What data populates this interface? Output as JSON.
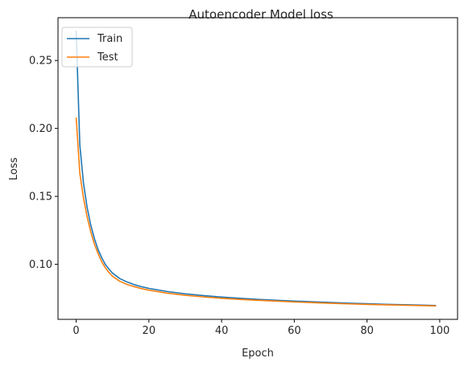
{
  "chart_data": {
    "type": "line",
    "title": "Autoencoder Model loss",
    "xlabel": "Epoch",
    "ylabel": "Loss",
    "xlim": [
      -5,
      104.9
    ],
    "ylim": [
      0.0595,
      0.2815
    ],
    "xticks": [
      0,
      20,
      40,
      60,
      80,
      100
    ],
    "yticks": [
      0.1,
      0.15,
      0.2,
      0.25
    ],
    "xtick_labels": [
      "0",
      "20",
      "40",
      "60",
      "80",
      "100"
    ],
    "ytick_labels": [
      "0.10",
      "0.15",
      "0.20",
      "0.25"
    ],
    "grid": false,
    "legend_position": "upper-left",
    "series": [
      {
        "name": "Train",
        "color": "#1f77b4",
        "x": [
          0,
          1,
          2,
          3,
          4,
          5,
          6,
          7,
          8,
          9,
          10,
          12,
          14,
          16,
          18,
          20,
          25,
          30,
          35,
          40,
          45,
          50,
          55,
          60,
          65,
          70,
          75,
          80,
          85,
          90,
          95,
          99
        ],
        "y": [
          0.272,
          0.188,
          0.16,
          0.142,
          0.129,
          0.119,
          0.111,
          0.105,
          0.1,
          0.0965,
          0.0935,
          0.0895,
          0.087,
          0.085,
          0.0835,
          0.0823,
          0.08,
          0.0783,
          0.077,
          0.0759,
          0.075,
          0.0742,
          0.0735,
          0.0729,
          0.0724,
          0.0719,
          0.0714,
          0.071,
          0.0706,
          0.0703,
          0.07,
          0.0697
        ]
      },
      {
        "name": "Test",
        "color": "#ff7f0e",
        "x": [
          0,
          1,
          2,
          3,
          4,
          5,
          6,
          7,
          8,
          9,
          10,
          12,
          14,
          16,
          18,
          20,
          25,
          30,
          35,
          40,
          45,
          50,
          55,
          60,
          65,
          70,
          75,
          80,
          85,
          90,
          95,
          99
        ],
        "y": [
          0.208,
          0.167,
          0.149,
          0.135,
          0.124,
          0.115,
          0.108,
          0.102,
          0.0975,
          0.094,
          0.0912,
          0.0875,
          0.0852,
          0.0835,
          0.0821,
          0.081,
          0.0788,
          0.0772,
          0.076,
          0.075,
          0.0742,
          0.0735,
          0.0729,
          0.0723,
          0.0718,
          0.0713,
          0.0709,
          0.0705,
          0.0702,
          0.0699,
          0.0696,
          0.0694
        ]
      }
    ]
  }
}
